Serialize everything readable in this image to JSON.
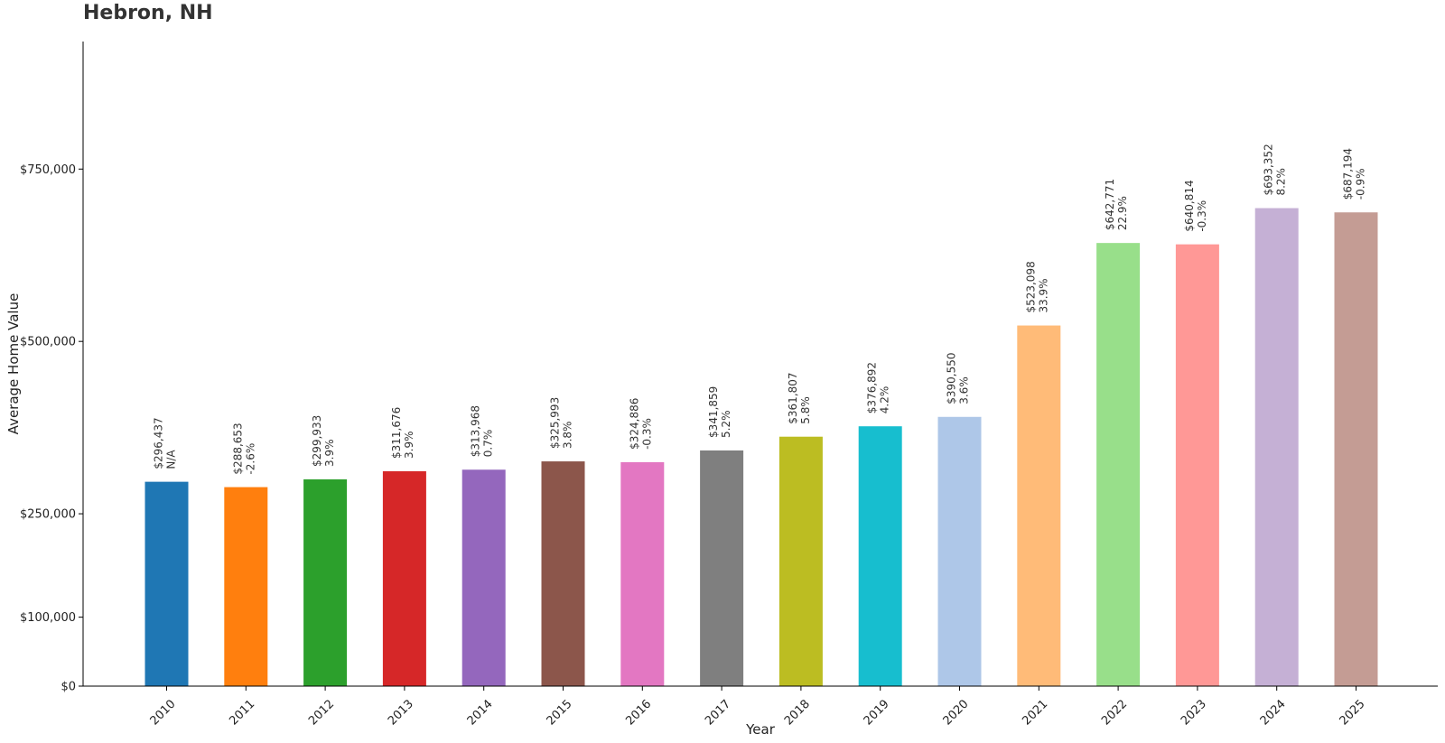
{
  "chart_data": {
    "type": "bar",
    "title": "Hebron, NH",
    "xlabel": "Year",
    "ylabel": "Average Home Value",
    "categories": [
      "2010",
      "2011",
      "2012",
      "2013",
      "2014",
      "2015",
      "2016",
      "2017",
      "2018",
      "2019",
      "2020",
      "2021",
      "2022",
      "2023",
      "2024",
      "2025"
    ],
    "values": [
      296437,
      288653,
      299933,
      311676,
      313968,
      325993,
      324886,
      341859,
      361807,
      376892,
      390550,
      523098,
      642771,
      640814,
      693352,
      687194
    ],
    "value_labels": [
      "$296,437",
      "$288,653",
      "$299,933",
      "$311,676",
      "$313,968",
      "$325,993",
      "$324,886",
      "$341,859",
      "$361,807",
      "$376,892",
      "$390,550",
      "$523,098",
      "$642,771",
      "$640,814",
      "$693,352",
      "$687,194"
    ],
    "change_labels": [
      "N/A",
      "-2.6%",
      "3.9%",
      "3.9%",
      "0.7%",
      "3.8%",
      "-0.3%",
      "5.2%",
      "5.8%",
      "4.2%",
      "3.6%",
      "33.9%",
      "22.9%",
      "-0.3%",
      "8.2%",
      "-0.9%"
    ],
    "colors": [
      "#1f77b4",
      "#ff7f0e",
      "#2ca02c",
      "#d62728",
      "#9467bd",
      "#8c564b",
      "#e377c2",
      "#7f7f7f",
      "#bcbd22",
      "#17becf",
      "#aec7e8",
      "#ffbb78",
      "#98df8a",
      "#ff9896",
      "#c5b0d5",
      "#c49c94"
    ],
    "yticks": [
      0,
      100000,
      250000,
      500000,
      750000
    ],
    "ytick_labels": [
      "$0",
      "$100,000",
      "$250,000",
      "$500,000",
      "$750,000"
    ],
    "ylim": [
      0,
      935000
    ],
    "grid": false,
    "legend": "none"
  }
}
